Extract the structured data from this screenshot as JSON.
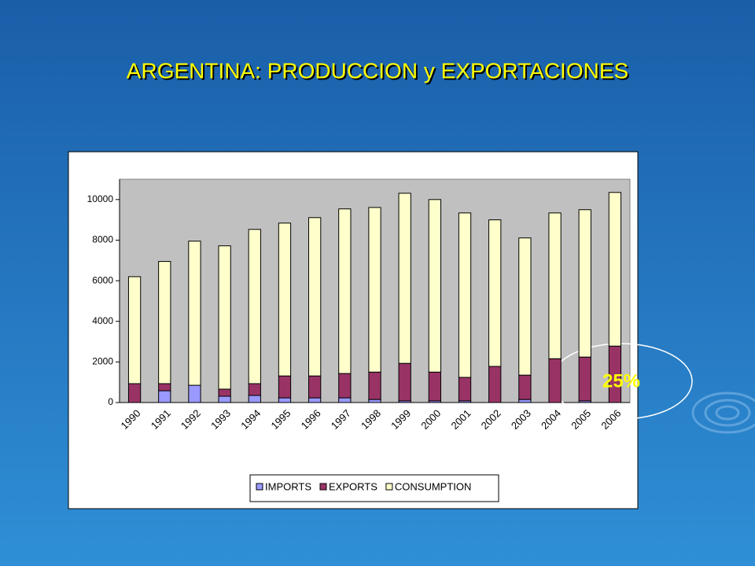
{
  "chart_data": {
    "type": "stacked_bar",
    "title": "ARGENTINA: PRODUCCION y EXPORTACIONES",
    "categories": [
      "1990",
      "1991",
      "1992",
      "1993",
      "1994",
      "1995",
      "1996",
      "1997",
      "1998",
      "1999",
      "2000",
      "2001",
      "2002",
      "2003",
      "2004",
      "2005",
      "2006"
    ],
    "series": [
      {
        "name": "IMPORTS",
        "color": "#9999ff",
        "values": [
          0,
          580,
          850,
          310,
          350,
          230,
          230,
          230,
          150,
          80,
          80,
          80,
          0,
          150,
          0,
          80,
          0
        ]
      },
      {
        "name": "EXPORTS",
        "color": "#993366",
        "values": [
          930,
          350,
          0,
          350,
          580,
          1080,
          1080,
          1200,
          1350,
          1850,
          1420,
          1160,
          1780,
          1200,
          2160,
          2160,
          2780
        ]
      },
      {
        "name": "CONSUMPTION",
        "color": "#ffffcc",
        "values": [
          5270,
          6020,
          7100,
          7060,
          7600,
          7530,
          7800,
          8110,
          8110,
          8380,
          8500,
          8100,
          7220,
          6760,
          7180,
          7260,
          7570
        ]
      }
    ],
    "ylim": [
      0,
      11000
    ],
    "yticks": [
      0,
      2000,
      4000,
      6000,
      8000,
      10000
    ],
    "legend": "bottom",
    "annotation": "25%"
  }
}
